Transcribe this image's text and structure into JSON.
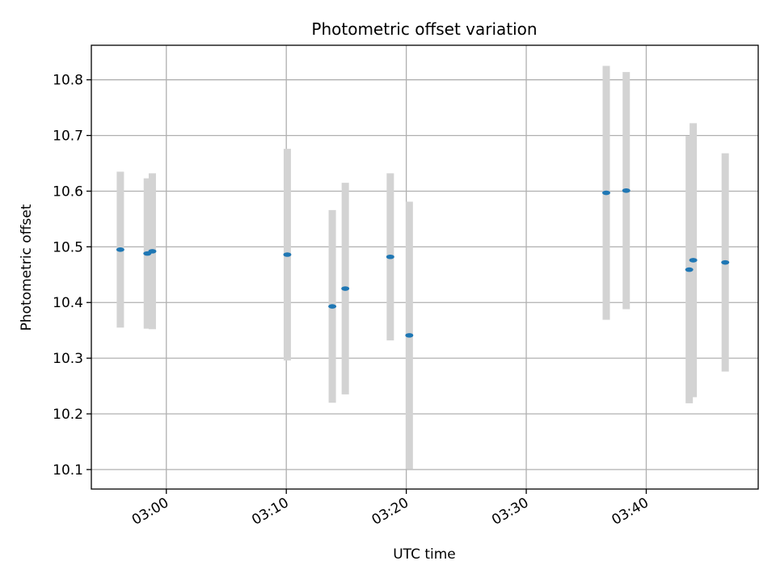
{
  "chart_data": {
    "type": "scatter",
    "title": "Photometric offset variation",
    "xlabel": "UTC time",
    "ylabel": "Photometric offset",
    "x_ticks": [
      "03:00",
      "03:10",
      "03:20",
      "03:30",
      "03:40"
    ],
    "y_ticks": [
      "10.1",
      "10.2",
      "10.3",
      "10.4",
      "10.5",
      "10.6",
      "10.7",
      "10.8"
    ],
    "xlim": [
      "02:53:45",
      "03:49:20"
    ],
    "ylim": [
      10.065,
      10.862
    ],
    "grid": true,
    "colors": {
      "point": "#1f77b4",
      "errorbar": "#d3d3d3",
      "grid": "#b0b0b0"
    },
    "points": [
      {
        "t": "02:56:10",
        "y": 10.495,
        "yerr": 0.14
      },
      {
        "t": "02:58:25",
        "y": 10.488,
        "yerr": 0.135
      },
      {
        "t": "02:58:50",
        "y": 10.492,
        "yerr": 0.14
      },
      {
        "t": "03:10:05",
        "y": 10.486,
        "yerr": 0.19
      },
      {
        "t": "03:13:50",
        "y": 10.393,
        "yerr": 0.173
      },
      {
        "t": "03:14:55",
        "y": 10.425,
        "yerr": 0.19
      },
      {
        "t": "03:18:40",
        "y": 10.482,
        "yerr": 0.15
      },
      {
        "t": "03:20:15",
        "y": 10.341,
        "yerr": 0.24
      },
      {
        "t": "03:36:40",
        "y": 10.597,
        "yerr": 0.228
      },
      {
        "t": "03:38:20",
        "y": 10.601,
        "yerr": 0.213
      },
      {
        "t": "03:43:35",
        "y": 10.459,
        "yerr": 0.24
      },
      {
        "t": "03:43:55",
        "y": 10.476,
        "yerr": 0.246
      },
      {
        "t": "03:46:35",
        "y": 10.472,
        "yerr": 0.196
      }
    ]
  }
}
